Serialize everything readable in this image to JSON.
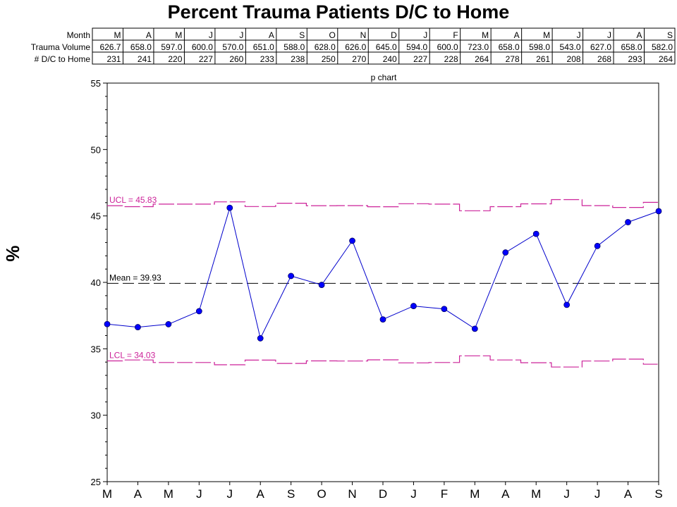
{
  "chart_data": {
    "type": "line",
    "subtype": "p-chart",
    "title": "Percent Trauma Patients D/C to Home",
    "subtitle": "p chart",
    "ylabel": "%",
    "xlabel": "",
    "ylim": [
      25,
      55
    ],
    "yticks": [
      "25",
      "30",
      "35",
      "40",
      "45",
      "50",
      "55"
    ],
    "categories": [
      "M",
      "A",
      "M",
      "J",
      "J",
      "A",
      "S",
      "O",
      "N",
      "D",
      "J",
      "F",
      "M",
      "A",
      "M",
      "J",
      "J",
      "A",
      "S"
    ],
    "table": {
      "row_labels": [
        "Month",
        "Trauma Volume",
        "# D/C to Home"
      ],
      "trauma_volume": [
        "626.7",
        "658.0",
        "597.0",
        "600.0",
        "570.0",
        "651.0",
        "588.0",
        "628.0",
        "626.0",
        "645.0",
        "594.0",
        "600.0",
        "723.0",
        "658.0",
        "598.0",
        "543.0",
        "627.0",
        "658.0",
        "582.0"
      ],
      "dc_home": [
        "231",
        "241",
        "220",
        "227",
        "260",
        "233",
        "238",
        "250",
        "270",
        "240",
        "227",
        "228",
        "264",
        "278",
        "261",
        "208",
        "268",
        "293",
        "264"
      ]
    },
    "series": [
      {
        "values": [
          36.86,
          36.63,
          36.85,
          37.83,
          45.61,
          35.79,
          40.48,
          39.81,
          43.13,
          37.21,
          38.22,
          38.0,
          36.51,
          42.25,
          43.65,
          38.31,
          42.74,
          44.53,
          45.36
        ]
      }
    ],
    "mean": {
      "label": "Mean = 39.93",
      "value": 39.93
    },
    "ucl": {
      "label": "UCL = 45.83",
      "values": [
        45.77,
        45.7,
        45.89,
        45.89,
        46.06,
        45.71,
        45.96,
        45.77,
        45.78,
        45.69,
        45.92,
        45.89,
        45.39,
        45.7,
        45.91,
        46.23,
        45.78,
        45.64,
        46.02
      ]
    },
    "lcl": {
      "label": "LCL = 34.03",
      "values": [
        34.09,
        34.16,
        33.97,
        33.97,
        33.8,
        34.15,
        33.9,
        34.09,
        34.08,
        34.17,
        33.94,
        33.97,
        34.47,
        34.16,
        33.95,
        33.63,
        34.08,
        34.22,
        33.84
      ]
    },
    "colors": {
      "series": "#0000cc",
      "marker": "#0000ff",
      "limits": "#cc2299",
      "mean": "#000000",
      "axis": "#000000"
    }
  }
}
